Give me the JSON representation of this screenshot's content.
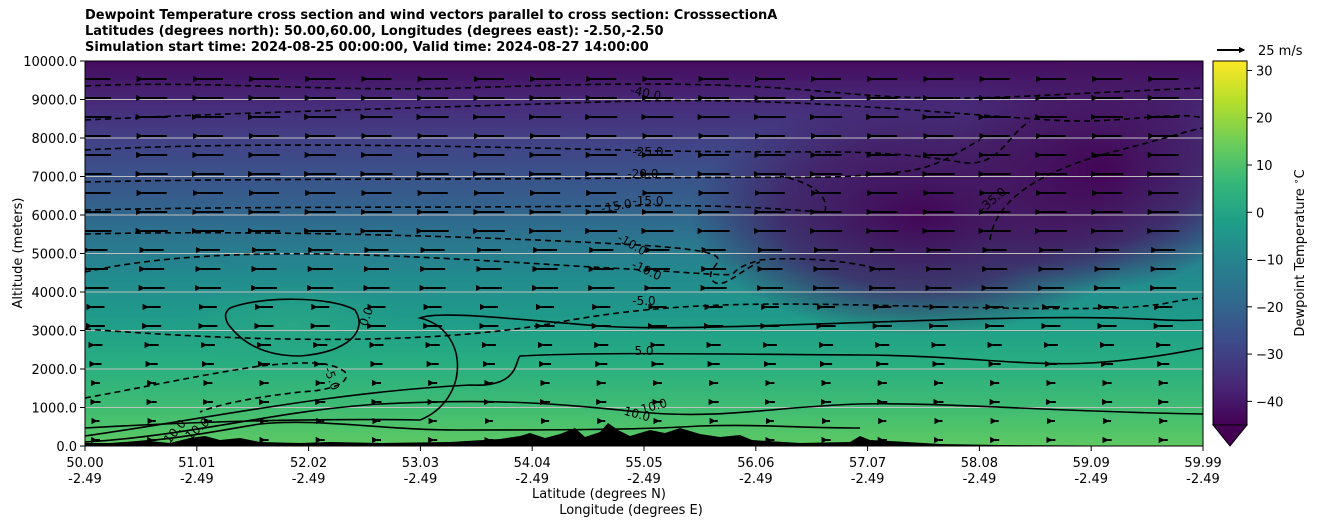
{
  "title_lines": [
    "Dewpoint Temperature cross section and wind vectors parallel to cross section: CrosssectionA",
    "Latitudes (degrees north): 50.00,60.00, Longitudes (degrees east): -2.50,-2.50",
    "Simulation start time: 2024-08-25 00:00:00, Valid time: 2024-08-27 14:00:00"
  ],
  "quiver_key": {
    "label": "25 m/s"
  },
  "colorbar": {
    "label": "Dewpoint Temperature $^\\circ$C",
    "ticks": [
      30,
      20,
      10,
      0,
      -10,
      -20,
      -30,
      -40
    ],
    "range": [
      -45,
      32
    ]
  },
  "colors": {
    "low": "#440154",
    "mid": "#21918c",
    "high": "#fde725"
  },
  "chart_data": {
    "type": "heatmap",
    "ylabel": "Altitude (meters)",
    "xlabel_lines": [
      "Latitude (degrees N)",
      "Longitude (degrees E)"
    ],
    "ylim": [
      0,
      10000
    ],
    "xlim": [
      50.0,
      59.99
    ],
    "y_ticks": [
      "0.0",
      "1000.0",
      "2000.0",
      "3000.0",
      "4000.0",
      "5000.0",
      "6000.0",
      "7000.0",
      "8000.0",
      "9000.0",
      "10000.0"
    ],
    "x_ticks": [
      {
        "lat": "50.00",
        "lon": "-2.49"
      },
      {
        "lat": "51.01",
        "lon": "-2.49"
      },
      {
        "lat": "52.02",
        "lon": "-2.49"
      },
      {
        "lat": "53.03",
        "lon": "-2.49"
      },
      {
        "lat": "54.04",
        "lon": "-2.49"
      },
      {
        "lat": "55.05",
        "lon": "-2.49"
      },
      {
        "lat": "56.06",
        "lon": "-2.49"
      },
      {
        "lat": "57.07",
        "lon": "-2.49"
      },
      {
        "lat": "58.08",
        "lon": "-2.49"
      },
      {
        "lat": "59.09",
        "lon": "-2.49"
      },
      {
        "lat": "59.99",
        "lon": "-2.49"
      }
    ],
    "grid": true,
    "contour_labels": [
      "-40.0",
      "-35.0",
      "-25.0",
      "-20.0",
      "-15.0",
      "-15.0",
      "-10.0",
      "-10.0",
      "-5.0",
      "-5.0",
      "0.0",
      "5.0",
      "10.0",
      "10.0",
      "10.0",
      "10.0"
    ]
  }
}
